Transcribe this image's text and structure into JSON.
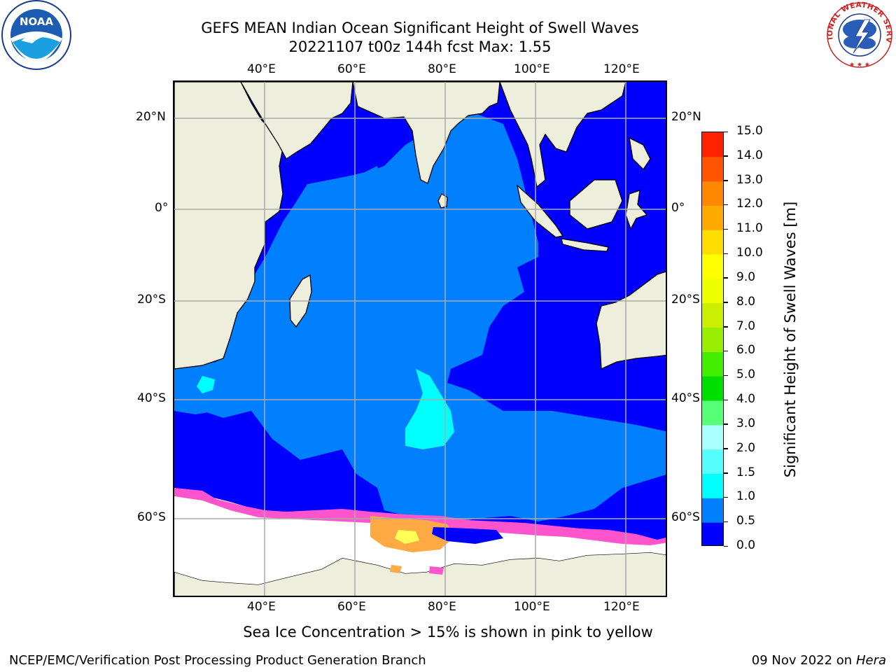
{
  "header": {
    "title_line1": "GEFS MEAN Indian Ocean Significant Height of Swell Waves",
    "title_line2": "20221107 t00z 144h fcst   Max: 1.55"
  },
  "logos": {
    "left": "noaa-logo",
    "right": "national-weather-service-logo",
    "left_text": "NOAA",
    "right_text": "NATIONAL WEATHER SERVICE"
  },
  "map": {
    "lon_labels": [
      "40°E",
      "60°E",
      "80°E",
      "100°E",
      "120°E"
    ],
    "lat_labels": [
      "20°N",
      "0°",
      "20°S",
      "40°S",
      "60°S"
    ],
    "lon_range": [
      20,
      129
    ],
    "lat_range": [
      -72,
      27
    ],
    "land_color": "#eeeedd",
    "ice_colors": [
      "#ff55cc",
      "#ffaa44",
      "#ffff55"
    ]
  },
  "colorbar": {
    "title": "Significant Height of Swell Waves [m]",
    "levels": [
      "0.0",
      "0.5",
      "1.0",
      "1.5",
      "2.0",
      "3.0",
      "4.0",
      "5.0",
      "6.0",
      "7.0",
      "8.0",
      "9.0",
      "10.0",
      "11.0",
      "12.0",
      "13.0",
      "14.0",
      "15.0"
    ],
    "colors": [
      "#0000ff",
      "#0080ff",
      "#00ffff",
      "#55ffff",
      "#aaffff",
      "#55ff77",
      "#00dd00",
      "#44ee00",
      "#99ee00",
      "#ccee00",
      "#eeff00",
      "#ffff00",
      "#ffdd00",
      "#ffaa00",
      "#ff8800",
      "#ff5500",
      "#ff2200"
    ]
  },
  "footer": {
    "note": "Sea Ice Concentration > 15% is shown in pink to yellow",
    "credit": "NCEP/EMC/Verification Post Processing Product Generation Branch",
    "date": "09 Nov 2022 on",
    "machine": "Hera"
  }
}
